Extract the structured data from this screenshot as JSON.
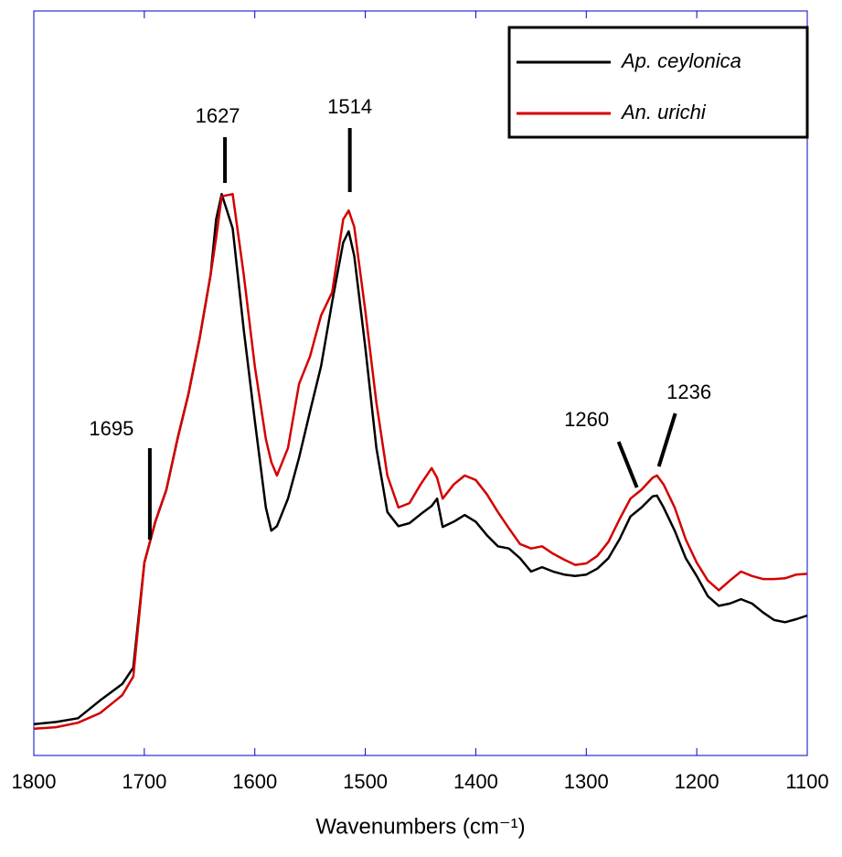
{
  "chart_data": {
    "type": "line",
    "x_label": "Wavenumbers (cm⁻¹)",
    "x": [
      1800,
      1780,
      1760,
      1740,
      1720,
      1710,
      1700,
      1690,
      1680,
      1670,
      1660,
      1650,
      1640,
      1635,
      1630,
      1620,
      1610,
      1600,
      1590,
      1585,
      1580,
      1570,
      1560,
      1550,
      1540,
      1530,
      1520,
      1515,
      1510,
      1500,
      1490,
      1480,
      1470,
      1460,
      1450,
      1440,
      1435,
      1430,
      1420,
      1410,
      1400,
      1390,
      1380,
      1370,
      1360,
      1350,
      1340,
      1330,
      1320,
      1310,
      1300,
      1290,
      1280,
      1270,
      1260,
      1250,
      1240,
      1236,
      1230,
      1220,
      1210,
      1200,
      1190,
      1180,
      1170,
      1160,
      1150,
      1140,
      1130,
      1120,
      1110,
      1100
    ],
    "series": [
      {
        "name": "Ap. ceylonica",
        "color": "#000000",
        "values": [
          4.2,
          4.5,
          5.0,
          7.4,
          9.6,
          11.8,
          25.9,
          31.4,
          35.7,
          42.5,
          48.6,
          56.0,
          64.6,
          72.0,
          75.4,
          70.8,
          57.2,
          45.0,
          33.3,
          30.2,
          30.8,
          34.5,
          40.0,
          46.2,
          52.3,
          60.9,
          68.9,
          70.4,
          67.1,
          54.8,
          41.3,
          32.7,
          30.8,
          31.2,
          32.4,
          33.5,
          34.5,
          30.7,
          31.4,
          32.3,
          31.4,
          29.6,
          28.1,
          27.8,
          26.5,
          24.7,
          25.3,
          24.7,
          24.3,
          24.1,
          24.3,
          25.1,
          26.5,
          29.0,
          32.1,
          33.3,
          34.8,
          34.9,
          33.3,
          30.2,
          26.5,
          24.1,
          21.4,
          20.1,
          20.4,
          21.0,
          20.4,
          19.2,
          18.2,
          17.9,
          18.3,
          18.8
        ]
      },
      {
        "name": "An. urichi",
        "color": "#d40000",
        "values": [
          3.6,
          3.8,
          4.4,
          5.7,
          8.1,
          10.6,
          25.9,
          31.4,
          35.7,
          42.5,
          48.6,
          56.0,
          64.6,
          69.5,
          75.1,
          75.4,
          64.6,
          52.3,
          42.5,
          39.4,
          37.6,
          41.3,
          49.9,
          53.6,
          59.1,
          62.2,
          72.0,
          73.2,
          71.0,
          59.7,
          47.4,
          37.6,
          33.3,
          33.9,
          36.4,
          38.6,
          37.3,
          34.5,
          36.4,
          37.6,
          37.0,
          35.1,
          32.7,
          30.5,
          28.4,
          27.8,
          28.1,
          27.1,
          26.3,
          25.6,
          25.8,
          26.8,
          28.7,
          31.7,
          34.5,
          35.7,
          37.3,
          37.6,
          36.4,
          33.3,
          29.0,
          25.9,
          23.5,
          22.2,
          23.5,
          24.7,
          24.1,
          23.7,
          23.7,
          23.8,
          24.3,
          24.4
        ]
      }
    ],
    "annotations": [
      1695,
      1627,
      1514,
      1260,
      1236
    ],
    "xlim": [
      1800,
      1100
    ],
    "xticks": [
      1800,
      1700,
      1600,
      1500,
      1400,
      1300,
      1200,
      1100
    ],
    "ylim": [
      0,
      100
    ],
    "legend": "upper-right"
  }
}
